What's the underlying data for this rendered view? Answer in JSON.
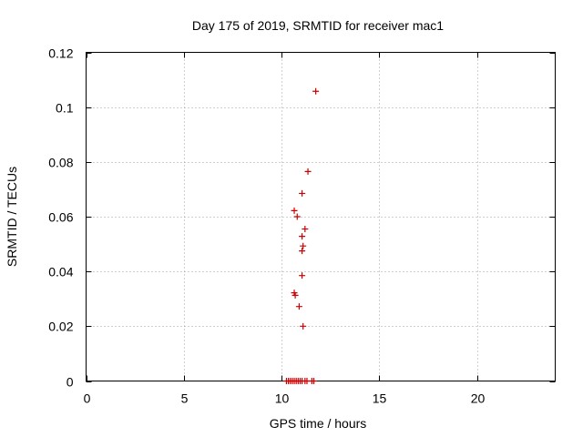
{
  "chart_data": {
    "type": "scatter",
    "title": "Day 175 of 2019, SRMTID for receiver mac1",
    "xlabel": "GPS time / hours",
    "ylabel": "SRMTID / TECUs",
    "xlim": [
      0,
      24
    ],
    "ylim": [
      0,
      0.12
    ],
    "xticks": [
      0,
      5,
      10,
      15,
      20
    ],
    "xtick_labels": [
      "0",
      "5",
      "10",
      "15",
      "20"
    ],
    "yticks": [
      0,
      0.02,
      0.04,
      0.06,
      0.08,
      0.1,
      0.12
    ],
    "ytick_labels": [
      "0",
      "0.02",
      "0.04",
      "0.06",
      "0.08",
      "0.1",
      "0.12"
    ],
    "grid": true,
    "marker": "+",
    "color": "#cc0000",
    "series": [
      {
        "name": "mac1",
        "points": [
          {
            "x": 11.75,
            "y": 0.1058
          },
          {
            "x": 11.35,
            "y": 0.0765
          },
          {
            "x": 11.05,
            "y": 0.0685
          },
          {
            "x": 10.65,
            "y": 0.0622
          },
          {
            "x": 10.8,
            "y": 0.06
          },
          {
            "x": 11.2,
            "y": 0.0555
          },
          {
            "x": 11.05,
            "y": 0.0528
          },
          {
            "x": 11.1,
            "y": 0.0493
          },
          {
            "x": 11.05,
            "y": 0.0475
          },
          {
            "x": 11.05,
            "y": 0.0385
          },
          {
            "x": 10.65,
            "y": 0.0322
          },
          {
            "x": 10.7,
            "y": 0.0313
          },
          {
            "x": 10.9,
            "y": 0.0272
          },
          {
            "x": 11.1,
            "y": 0.02
          },
          {
            "x": 10.25,
            "y": 0.0
          },
          {
            "x": 10.35,
            "y": 0.0
          },
          {
            "x": 10.45,
            "y": 0.0
          },
          {
            "x": 10.55,
            "y": 0.0
          },
          {
            "x": 10.65,
            "y": 0.0
          },
          {
            "x": 10.75,
            "y": 0.0
          },
          {
            "x": 10.85,
            "y": 0.0
          },
          {
            "x": 10.95,
            "y": 0.0
          },
          {
            "x": 11.05,
            "y": 0.0
          },
          {
            "x": 11.2,
            "y": 0.0
          },
          {
            "x": 11.3,
            "y": 0.0
          },
          {
            "x": 11.55,
            "y": 0.0
          },
          {
            "x": 11.65,
            "y": 0.0
          }
        ]
      }
    ]
  }
}
